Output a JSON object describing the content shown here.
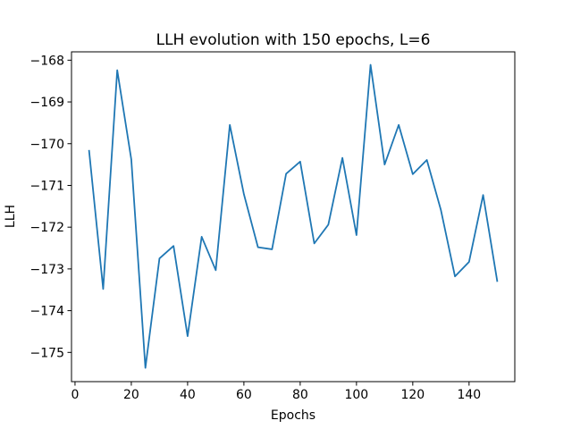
{
  "chart_data": {
    "type": "line",
    "title": "LLH evolution with 150 epochs, L=6",
    "xlabel": "Epochs",
    "ylabel": "LLH",
    "xlim": [
      -1.25,
      156.25
    ],
    "ylim": [
      -175.7,
      -167.8
    ],
    "xticks": [
      0,
      20,
      40,
      60,
      80,
      100,
      120,
      140
    ],
    "xtick_labels": [
      "0",
      "20",
      "40",
      "60",
      "80",
      "100",
      "120",
      "140"
    ],
    "yticks": [
      -175,
      -174,
      -173,
      -172,
      -171,
      -170,
      -169,
      -168
    ],
    "ytick_labels": [
      "−175",
      "−174",
      "−173",
      "−172",
      "−171",
      "−170",
      "−169",
      "−168"
    ],
    "grid": false,
    "legend": "none",
    "series": [
      {
        "color": "#1f77b4",
        "x": [
          5,
          10,
          15,
          20,
          25,
          30,
          35,
          40,
          45,
          50,
          55,
          60,
          65,
          70,
          75,
          80,
          85,
          90,
          95,
          100,
          105,
          110,
          115,
          120,
          125,
          130,
          135,
          140,
          145,
          150
        ],
        "y": [
          -170.17,
          -173.48,
          -168.24,
          -170.38,
          -175.37,
          -172.75,
          -172.45,
          -174.61,
          -172.23,
          -173.03,
          -169.55,
          -171.21,
          -172.48,
          -172.53,
          -170.72,
          -170.43,
          -172.39,
          -171.94,
          -170.34,
          -172.19,
          -168.11,
          -170.5,
          -169.55,
          -170.73,
          -170.39,
          -171.59,
          -173.18,
          -172.83,
          -171.23,
          -173.29
        ]
      }
    ]
  }
}
